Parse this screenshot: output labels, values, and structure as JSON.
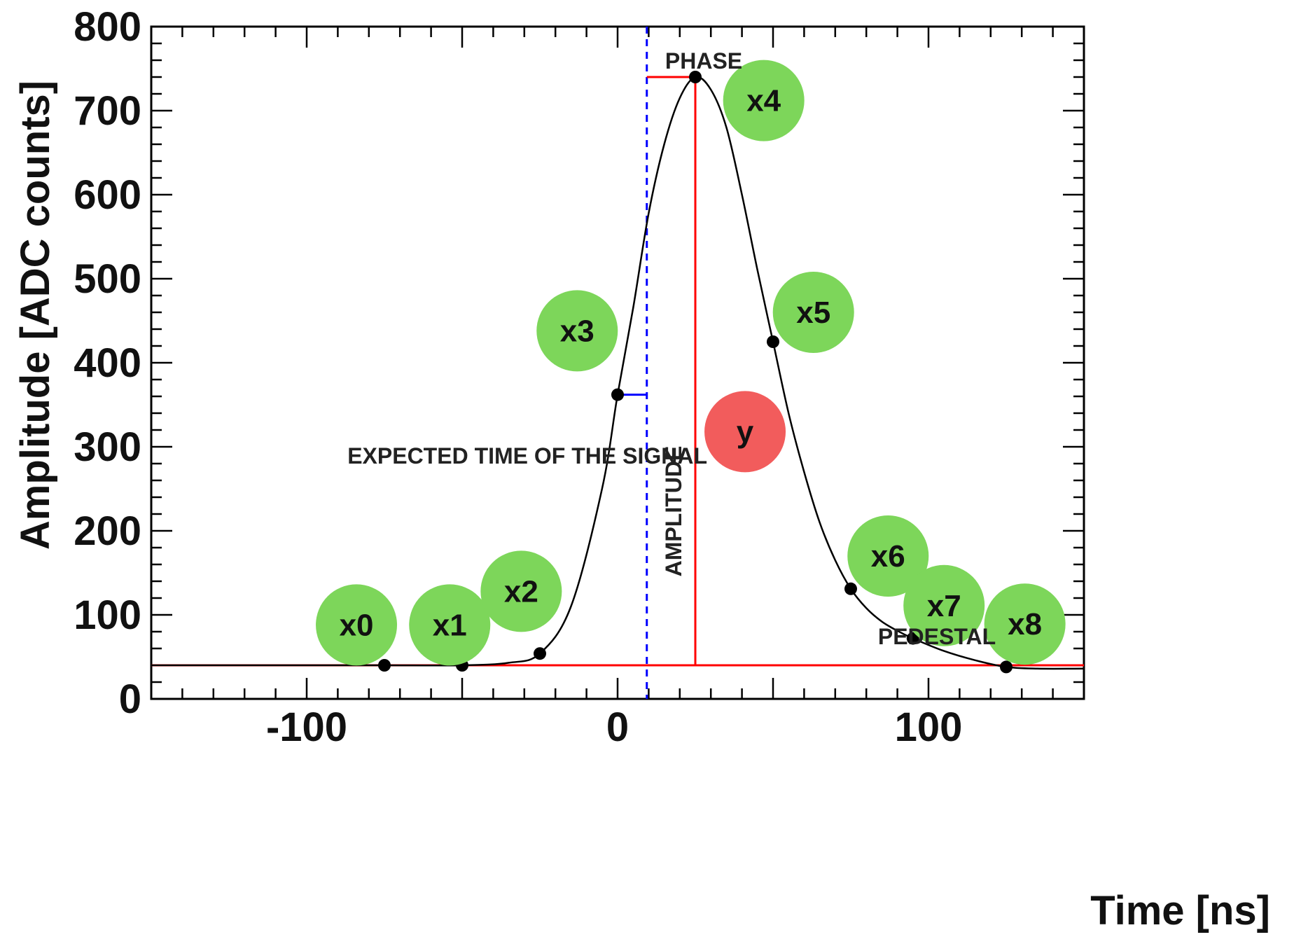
{
  "chart_data": {
    "type": "line",
    "title": "",
    "xlabel": "Time [ns]",
    "ylabel": "Amplitude [ADC counts]",
    "xlim": [
      -150,
      150
    ],
    "ylim": [
      0,
      800
    ],
    "x_ticks": [
      -100,
      0,
      100
    ],
    "x_tick_labels": [
      "-100",
      "0",
      "100"
    ],
    "y_ticks": [
      0,
      100,
      200,
      300,
      400,
      500,
      600,
      700,
      800
    ],
    "y_tick_labels": [
      "0",
      "100",
      "200",
      "300",
      "400",
      "500",
      "600",
      "700",
      "800"
    ],
    "grid": false,
    "pedestal": 40,
    "expected_time": 9.4,
    "peak": {
      "time": 25,
      "amplitude": 740
    },
    "samples": [
      {
        "name": "x0",
        "x": -75,
        "y": 40
      },
      {
        "name": "x1",
        "x": -50,
        "y": 40
      },
      {
        "name": "x2",
        "x": -25,
        "y": 54
      },
      {
        "name": "x3",
        "x": 0,
        "y": 362
      },
      {
        "name": "x4",
        "x": 25,
        "y": 740
      },
      {
        "name": "x5",
        "x": 50,
        "y": 425
      },
      {
        "name": "x6",
        "x": 75,
        "y": 131
      },
      {
        "name": "x7",
        "x": 95,
        "y": 72
      },
      {
        "name": "x8",
        "x": 125,
        "y": 38
      }
    ],
    "curve": [
      [
        -150,
        40
      ],
      [
        -100,
        40
      ],
      [
        -75,
        40
      ],
      [
        -50,
        40
      ],
      [
        -35,
        43
      ],
      [
        -25,
        54
      ],
      [
        -15,
        110
      ],
      [
        -5,
        250
      ],
      [
        0,
        362
      ],
      [
        5,
        465
      ],
      [
        10,
        578
      ],
      [
        15,
        660
      ],
      [
        20,
        715
      ],
      [
        25,
        740
      ],
      [
        30,
        725
      ],
      [
        35,
        680
      ],
      [
        40,
        600
      ],
      [
        45,
        510
      ],
      [
        50,
        425
      ],
      [
        55,
        340
      ],
      [
        60,
        270
      ],
      [
        65,
        210
      ],
      [
        70,
        165
      ],
      [
        75,
        131
      ],
      [
        80,
        108
      ],
      [
        85,
        92
      ],
      [
        90,
        81
      ],
      [
        95,
        72
      ],
      [
        105,
        57
      ],
      [
        115,
        46
      ],
      [
        125,
        38
      ],
      [
        135,
        36
      ],
      [
        150,
        36
      ]
    ],
    "annotations": {
      "phase": "PHASE",
      "amplitude": "AMPLITUDE",
      "pedestal": "PEDESTAL",
      "expected": "EXPECTED TIME OF THE SIGNAL"
    },
    "bubbles": [
      {
        "label": "x0",
        "x": -84,
        "y": 88,
        "color": "#7dd65a"
      },
      {
        "label": "x1",
        "x": -54,
        "y": 88,
        "color": "#7dd65a"
      },
      {
        "label": "x2",
        "x": -31,
        "y": 128,
        "color": "#7dd65a"
      },
      {
        "label": "x3",
        "x": -13,
        "y": 438,
        "color": "#7dd65a"
      },
      {
        "label": "x4",
        "x": 47,
        "y": 712,
        "color": "#7dd65a"
      },
      {
        "label": "x5",
        "x": 63,
        "y": 460,
        "color": "#7dd65a"
      },
      {
        "label": "x6",
        "x": 87,
        "y": 170,
        "color": "#7dd65a"
      },
      {
        "label": "x7",
        "x": 105,
        "y": 111,
        "color": "#7dd65a"
      },
      {
        "label": "x8",
        "x": 131,
        "y": 89,
        "color": "#7dd65a"
      },
      {
        "label": "y",
        "x": 41,
        "y": 318,
        "color": "#f25c5c"
      }
    ],
    "colors": {
      "curve": "#000000",
      "markers": "#000000",
      "pedestal_line": "#ff0000",
      "amplitude_line": "#ff0000",
      "phase_line": "#ff0000",
      "expected_line": "#0000ff"
    }
  }
}
